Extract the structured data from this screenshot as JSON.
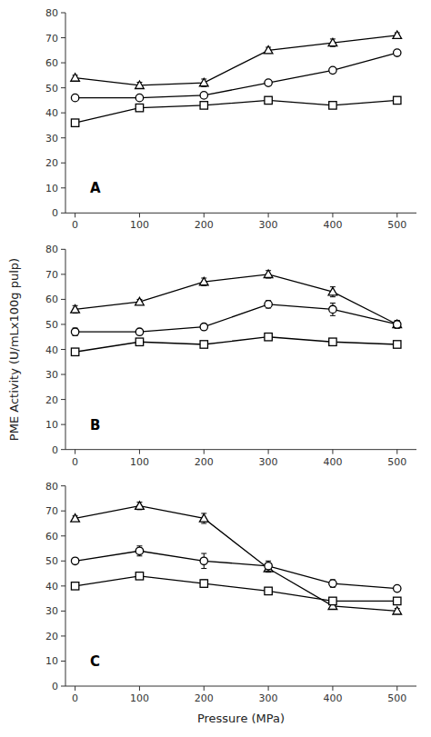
{
  "chart_data": [
    {
      "type": "line",
      "annotations": [
        "A"
      ],
      "x": [
        0,
        100,
        200,
        300,
        400,
        500
      ],
      "series": [
        {
          "marker": "triangle",
          "color": "#000000",
          "values": [
            54,
            51,
            52,
            65,
            68,
            71
          ],
          "errors": [
            1.0,
            1.2,
            1.5,
            1.2,
            1.5,
            1.0
          ]
        },
        {
          "marker": "circle",
          "color": "#000000",
          "values": [
            46,
            46,
            47,
            52,
            57,
            64
          ],
          "errors": [
            1.0,
            1.0,
            1.0,
            1.0,
            1.0,
            1.0
          ]
        },
        {
          "marker": "square",
          "color": "#000000",
          "values": [
            36,
            42,
            43,
            45,
            43,
            45
          ],
          "errors": [
            1.0,
            1.0,
            1.0,
            1.0,
            1.0,
            1.0
          ]
        }
      ],
      "xlim": [
        -15,
        530
      ],
      "xticks": [
        0,
        100,
        200,
        300,
        400,
        500
      ],
      "ylim": [
        0,
        80
      ],
      "yticks": [
        0,
        10,
        20,
        30,
        40,
        50,
        60,
        70,
        80
      ],
      "grid": false
    },
    {
      "type": "line",
      "annotations": [
        "B"
      ],
      "ylabel": "PME Activity (U/mLx100g pulp)",
      "x": [
        0,
        100,
        200,
        300,
        400,
        500
      ],
      "series": [
        {
          "marker": "triangle",
          "color": "#000000",
          "values": [
            56,
            59,
            67,
            70,
            63,
            50
          ],
          "errors": [
            1.5,
            1.0,
            1.5,
            1.5,
            2.0,
            1.5
          ]
        },
        {
          "marker": "circle",
          "color": "#000000",
          "values": [
            47,
            47,
            49,
            58,
            56,
            50
          ],
          "errors": [
            1.5,
            1.0,
            1.0,
            1.5,
            2.5,
            1.5
          ]
        },
        {
          "marker": "square",
          "color": "#000000",
          "values": [
            39,
            43,
            42,
            45,
            43,
            42
          ],
          "errors": [
            1.0,
            1.0,
            1.0,
            1.0,
            1.0,
            1.0
          ]
        }
      ],
      "xlim": [
        -15,
        530
      ],
      "xticks": [
        0,
        100,
        200,
        300,
        400,
        500
      ],
      "ylim": [
        0,
        80
      ],
      "yticks": [
        0,
        10,
        20,
        30,
        40,
        50,
        60,
        70,
        80
      ],
      "grid": false
    },
    {
      "type": "line",
      "annotations": [
        "C"
      ],
      "xlabel": "Pressure (MPa)",
      "x": [
        0,
        100,
        200,
        300,
        400,
        500
      ],
      "series": [
        {
          "marker": "triangle",
          "color": "#000000",
          "values": [
            67,
            72,
            67,
            47,
            32,
            30
          ],
          "errors": [
            1.0,
            1.5,
            2.0,
            1.5,
            1.0,
            1.0
          ]
        },
        {
          "marker": "circle",
          "color": "#000000",
          "values": [
            50,
            54,
            50,
            48,
            41,
            39
          ],
          "errors": [
            1.0,
            2.0,
            3.0,
            2.0,
            1.5,
            1.0
          ]
        },
        {
          "marker": "square",
          "color": "#000000",
          "values": [
            40,
            44,
            41,
            38,
            34,
            34
          ],
          "errors": [
            1.0,
            1.0,
            1.5,
            1.0,
            1.0,
            1.0
          ]
        }
      ],
      "xlim": [
        -15,
        530
      ],
      "xticks": [
        0,
        100,
        200,
        300,
        400,
        500
      ],
      "ylim": [
        0,
        80
      ],
      "yticks": [
        0,
        10,
        20,
        30,
        40,
        50,
        60,
        70,
        80
      ],
      "grid": false
    }
  ]
}
